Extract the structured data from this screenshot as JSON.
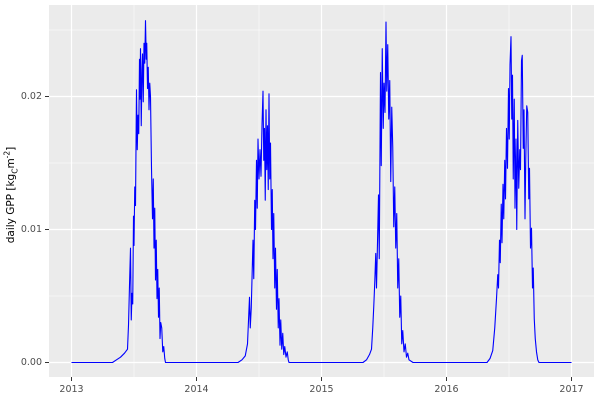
{
  "figure": {
    "ylabel_parts": {
      "p1": "daily GPP [kg",
      "sub": "C",
      "p2": "m",
      "sup": "-2",
      "p3": "]"
    }
  },
  "chart_data": {
    "type": "line",
    "title": "",
    "xlabel": "",
    "ylabel": "daily GPP [kg_C m^-2]",
    "xlim": [
      2012.82,
      2017.18
    ],
    "ylim": [
      -0.00109,
      0.02688
    ],
    "xticks": [
      2013,
      2014,
      2015,
      2016,
      2017
    ],
    "xtick_labels": [
      "2013",
      "2014",
      "2015",
      "2016",
      "2017"
    ],
    "yticks": [
      0,
      0.01,
      0.02
    ],
    "ytick_labels": [
      "0.00",
      "0.01",
      "0.02"
    ],
    "minor_xticks": [
      2013.5,
      2014.5,
      2015.5,
      2016.5
    ],
    "minor_yticks": [
      0.005,
      0.015,
      0.025
    ],
    "grid": true,
    "legend": "none",
    "theme": {
      "figure_bg": "#FFFFFF",
      "panel_bg": "#EBEBEB",
      "grid_major": "#FFFFFF",
      "grid_minor": "#FFFFFF",
      "axis_text": "#4D4D4D",
      "tick_mark": "#333333",
      "line_color": "#0000FF"
    },
    "series": [
      {
        "name": "daily GPP",
        "color": "#0000FF",
        "points": [
          [
            2013.0,
            0
          ],
          [
            2013.08,
            0
          ],
          [
            2013.16,
            0
          ],
          [
            2013.24,
            0
          ],
          [
            2013.328,
            0
          ],
          [
            2013.36,
            0.0002
          ],
          [
            2013.392,
            0.0004
          ],
          [
            2013.424,
            0.0007
          ],
          [
            2013.448,
            0.001
          ],
          [
            2013.456,
            0.0028
          ],
          [
            2013.464,
            0.0058
          ],
          [
            2013.472,
            0.0086
          ],
          [
            2013.478,
            0.0032
          ],
          [
            2013.484,
            0.0052
          ],
          [
            2013.49,
            0.0044
          ],
          [
            2013.496,
            0.011
          ],
          [
            2013.5,
            0.0088
          ],
          [
            2013.506,
            0.0132
          ],
          [
            2013.512,
            0.0118
          ],
          [
            2013.52,
            0.0205
          ],
          [
            2013.526,
            0.016
          ],
          [
            2013.532,
            0.0186
          ],
          [
            2013.538,
            0.0172
          ],
          [
            2013.544,
            0.0228
          ],
          [
            2013.548,
            0.0198
          ],
          [
            2013.552,
            0.0236
          ],
          [
            2013.558,
            0.0178
          ],
          [
            2013.564,
            0.022
          ],
          [
            2013.568,
            0.0232
          ],
          [
            2013.574,
            0.0196
          ],
          [
            2013.58,
            0.024
          ],
          [
            2013.586,
            0.0225
          ],
          [
            2013.592,
            0.0257
          ],
          [
            2013.598,
            0.0228
          ],
          [
            2013.602,
            0.024
          ],
          [
            2013.608,
            0.0206
          ],
          [
            2013.614,
            0.0222
          ],
          [
            2013.62,
            0.019
          ],
          [
            2013.626,
            0.021
          ],
          [
            2013.632,
            0.02
          ],
          [
            2013.64,
            0.0146
          ],
          [
            2013.648,
            0.0108
          ],
          [
            2013.654,
            0.0138
          ],
          [
            2013.66,
            0.0086
          ],
          [
            2013.666,
            0.0116
          ],
          [
            2013.672,
            0.0062
          ],
          [
            2013.678,
            0.0092
          ],
          [
            2013.684,
            0.0048
          ],
          [
            2013.69,
            0.007
          ],
          [
            2013.696,
            0.0034
          ],
          [
            2013.702,
            0.0056
          ],
          [
            2013.708,
            0.0018
          ],
          [
            2013.714,
            0.003
          ],
          [
            2013.722,
            0.0026
          ],
          [
            2013.73,
            0.0008
          ],
          [
            2013.738,
            0.0012
          ],
          [
            2013.746,
            0.0003
          ],
          [
            2013.752,
            0
          ],
          [
            2013.85,
            0
          ],
          [
            2014.0,
            0
          ],
          [
            2014.15,
            0
          ],
          [
            2014.25,
            0
          ],
          [
            2014.332,
            0
          ],
          [
            2014.364,
            0.0002
          ],
          [
            2014.39,
            0.0005
          ],
          [
            2014.408,
            0.0014
          ],
          [
            2014.424,
            0.0049
          ],
          [
            2014.43,
            0.0026
          ],
          [
            2014.438,
            0.0041
          ],
          [
            2014.446,
            0.007
          ],
          [
            2014.452,
            0.0092
          ],
          [
            2014.458,
            0.0063
          ],
          [
            2014.466,
            0.0122
          ],
          [
            2014.472,
            0.01
          ],
          [
            2014.48,
            0.0152
          ],
          [
            2014.486,
            0.0116
          ],
          [
            2014.492,
            0.0168
          ],
          [
            2014.5,
            0.0138
          ],
          [
            2014.508,
            0.016
          ],
          [
            2014.516,
            0.014
          ],
          [
            2014.524,
            0.0178
          ],
          [
            2014.532,
            0.0204
          ],
          [
            2014.538,
            0.0152
          ],
          [
            2014.544,
            0.0176
          ],
          [
            2014.55,
            0.0122
          ],
          [
            2014.556,
            0.019
          ],
          [
            2014.562,
            0.0145
          ],
          [
            2014.568,
            0.0178
          ],
          [
            2014.574,
            0.013
          ],
          [
            2014.58,
            0.0202
          ],
          [
            2014.586,
            0.0138
          ],
          [
            2014.592,
            0.0165
          ],
          [
            2014.6,
            0.01
          ],
          [
            2014.606,
            0.013
          ],
          [
            2014.612,
            0.0078
          ],
          [
            2014.618,
            0.0112
          ],
          [
            2014.626,
            0.0056
          ],
          [
            2014.632,
            0.0086
          ],
          [
            2014.64,
            0.004
          ],
          [
            2014.646,
            0.007
          ],
          [
            2014.654,
            0.0026
          ],
          [
            2014.66,
            0.0048
          ],
          [
            2014.668,
            0.0013
          ],
          [
            2014.674,
            0.0032
          ],
          [
            2014.682,
            0.001
          ],
          [
            2014.69,
            0.0022
          ],
          [
            2014.698,
            0.0006
          ],
          [
            2014.706,
            0.0012
          ],
          [
            2014.716,
            0.0004
          ],
          [
            2014.726,
            0.0008
          ],
          [
            2014.734,
            0.0002
          ],
          [
            2014.74,
            0
          ],
          [
            2014.85,
            0
          ],
          [
            2015.0,
            0
          ],
          [
            2015.15,
            0
          ],
          [
            2015.3,
            0
          ],
          [
            2015.332,
            0
          ],
          [
            2015.36,
            0.0002
          ],
          [
            2015.384,
            0.0006
          ],
          [
            2015.4,
            0.001
          ],
          [
            2015.41,
            0.0026
          ],
          [
            2015.418,
            0.0042
          ],
          [
            2015.426,
            0.006
          ],
          [
            2015.434,
            0.0082
          ],
          [
            2015.44,
            0.0056
          ],
          [
            2015.448,
            0.009
          ],
          [
            2015.456,
            0.0126
          ],
          [
            2015.462,
            0.0078
          ],
          [
            2015.472,
            0.0218
          ],
          [
            2015.478,
            0.0148
          ],
          [
            2015.486,
            0.0236
          ],
          [
            2015.494,
            0.0176
          ],
          [
            2015.5,
            0.021
          ],
          [
            2015.508,
            0.0188
          ],
          [
            2015.516,
            0.0256
          ],
          [
            2015.522,
            0.0204
          ],
          [
            2015.53,
            0.0239
          ],
          [
            2015.538,
            0.0183
          ],
          [
            2015.546,
            0.0212
          ],
          [
            2015.554,
            0.0136
          ],
          [
            2015.562,
            0.0192
          ],
          [
            2015.57,
            0.0162
          ],
          [
            2015.578,
            0.0102
          ],
          [
            2015.586,
            0.0132
          ],
          [
            2015.594,
            0.0086
          ],
          [
            2015.602,
            0.0112
          ],
          [
            2015.61,
            0.0056
          ],
          [
            2015.618,
            0.0078
          ],
          [
            2015.626,
            0.0034
          ],
          [
            2015.634,
            0.005
          ],
          [
            2015.642,
            0.0014
          ],
          [
            2015.65,
            0.0024
          ],
          [
            2015.66,
            0.0008
          ],
          [
            2015.67,
            0.0014
          ],
          [
            2015.68,
            0.0004
          ],
          [
            2015.69,
            0.0007
          ],
          [
            2015.7,
            0.0002
          ],
          [
            2015.732,
            0
          ],
          [
            2015.85,
            0
          ],
          [
            2016.0,
            0
          ],
          [
            2016.15,
            0
          ],
          [
            2016.25,
            0
          ],
          [
            2016.324,
            0
          ],
          [
            2016.348,
            0.0003
          ],
          [
            2016.37,
            0.0009
          ],
          [
            2016.386,
            0.0026
          ],
          [
            2016.4,
            0.0048
          ],
          [
            2016.41,
            0.0066
          ],
          [
            2016.416,
            0.0056
          ],
          [
            2016.424,
            0.0092
          ],
          [
            2016.43,
            0.0075
          ],
          [
            2016.438,
            0.0119
          ],
          [
            2016.444,
            0.009
          ],
          [
            2016.452,
            0.0134
          ],
          [
            2016.458,
            0.0108
          ],
          [
            2016.466,
            0.0152
          ],
          [
            2016.472,
            0.0123
          ],
          [
            2016.48,
            0.0176
          ],
          [
            2016.488,
            0.0146
          ],
          [
            2016.496,
            0.0206
          ],
          [
            2016.502,
            0.0168
          ],
          [
            2016.508,
            0.0224
          ],
          [
            2016.516,
            0.0245
          ],
          [
            2016.522,
            0.0183
          ],
          [
            2016.528,
            0.0216
          ],
          [
            2016.534,
            0.0138
          ],
          [
            2016.542,
            0.0198
          ],
          [
            2016.548,
            0.0116
          ],
          [
            2016.556,
            0.0168
          ],
          [
            2016.562,
            0.01
          ],
          [
            2016.57,
            0.0182
          ],
          [
            2016.578,
            0.0131
          ],
          [
            2016.586,
            0.016
          ],
          [
            2016.592,
            0.0145
          ],
          [
            2016.6,
            0.0227
          ],
          [
            2016.606,
            0.0231
          ],
          [
            2016.614,
            0.0161
          ],
          [
            2016.62,
            0.019
          ],
          [
            2016.628,
            0.0108
          ],
          [
            2016.634,
            0.0152
          ],
          [
            2016.642,
            0.0193
          ],
          [
            2016.65,
            0.0188
          ],
          [
            2016.658,
            0.0123
          ],
          [
            2016.664,
            0.0146
          ],
          [
            2016.672,
            0.0086
          ],
          [
            2016.68,
            0.0101
          ],
          [
            2016.688,
            0.0056
          ],
          [
            2016.694,
            0.0071
          ],
          [
            2016.702,
            0.0033
          ],
          [
            2016.71,
            0.0018
          ],
          [
            2016.72,
            0.0008
          ],
          [
            2016.73,
            0.0002
          ],
          [
            2016.74,
            0
          ],
          [
            2016.85,
            0
          ],
          [
            2016.95,
            0
          ],
          [
            2017.0,
            0
          ]
        ]
      }
    ]
  }
}
